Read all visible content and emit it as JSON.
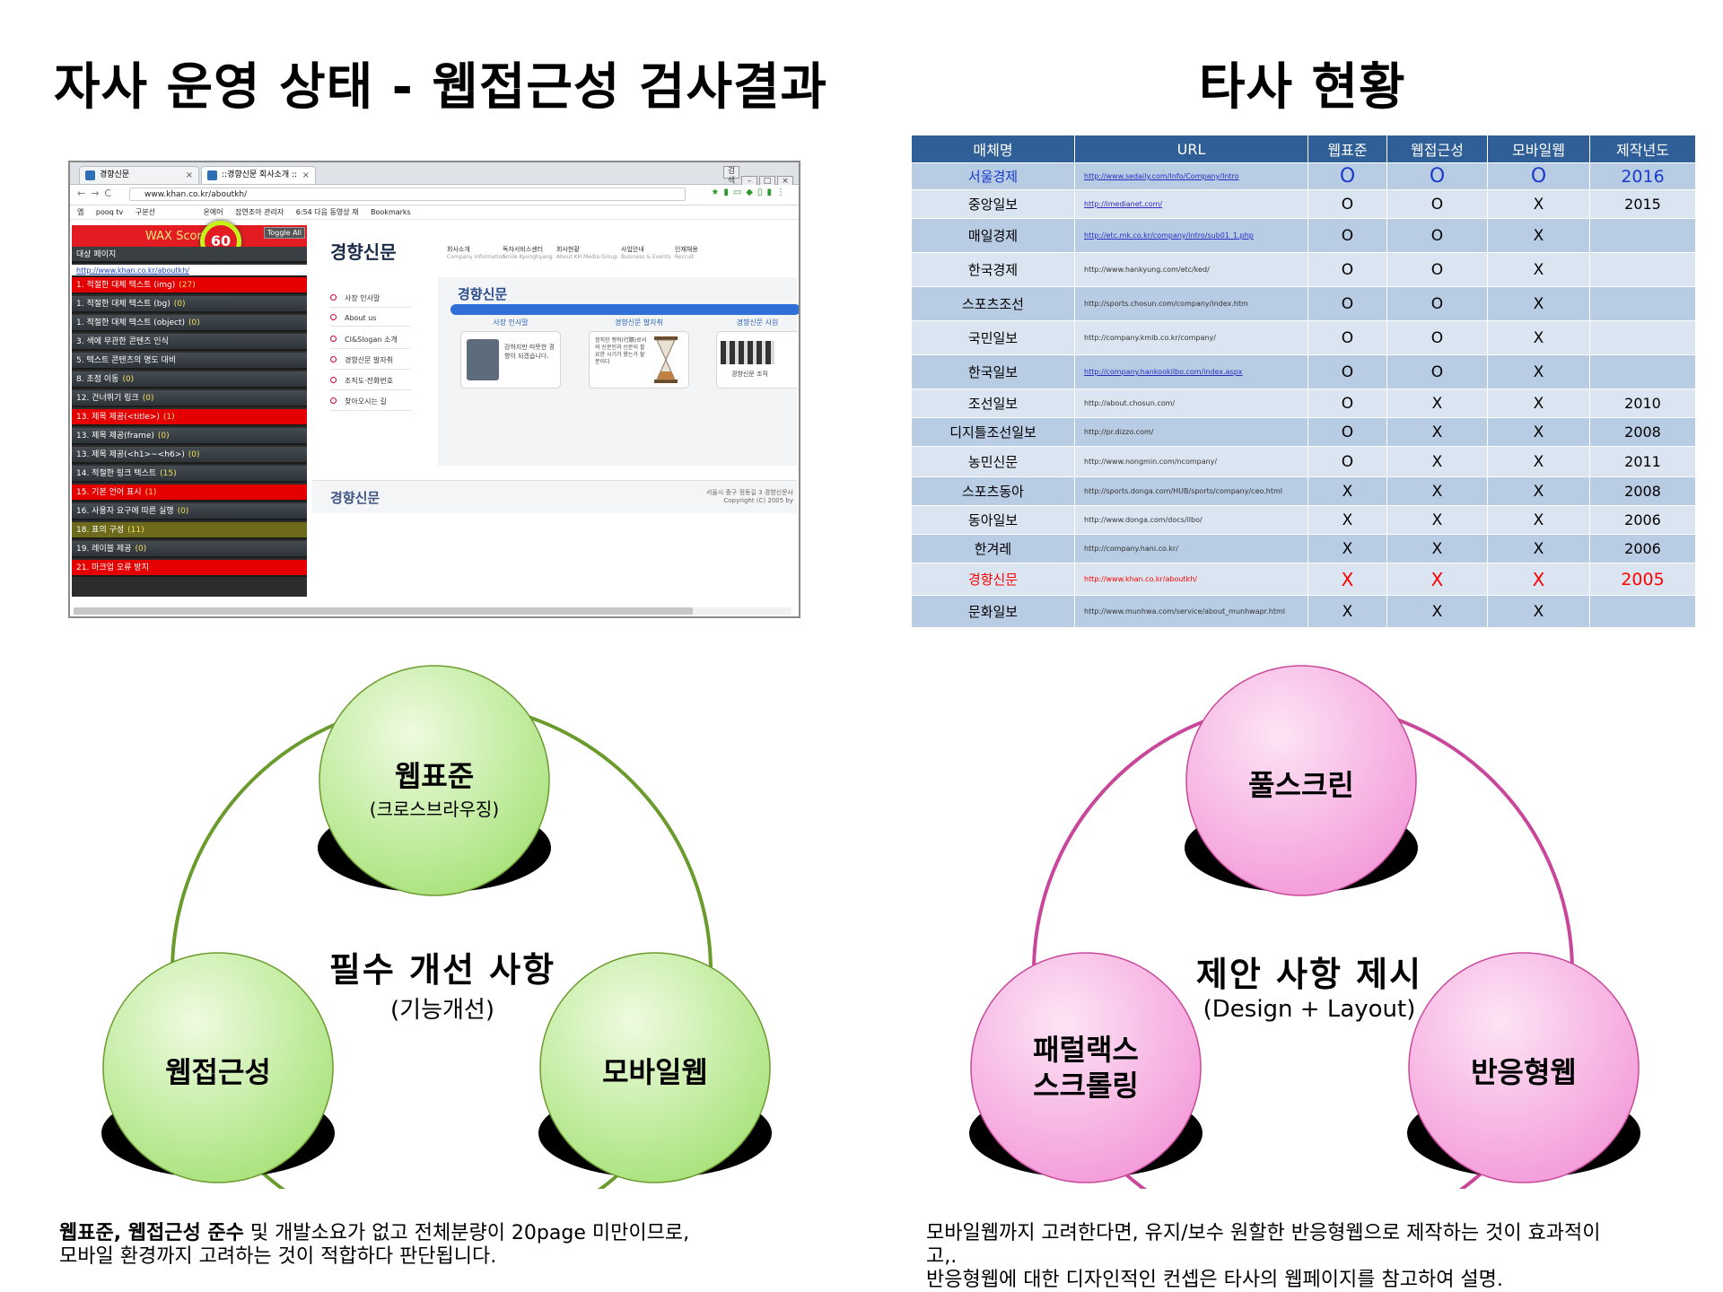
{
  "left_title": "자사 운영 상태 - 웹접근성 검사결과",
  "right_title": "타사 현황",
  "browser": {
    "tabs": [
      "경향신문",
      "::경향신문 회사소개 ::"
    ],
    "window_buttons": [
      "검색",
      "–",
      "□",
      "×"
    ],
    "url": "www.khan.co.kr/aboutkh/",
    "bookmarks": [
      "앱",
      "pooq tv",
      "구분선",
      "온에어",
      "잡연조아 관리자",
      "6:54 다음 동영상 재",
      "Bookmarks"
    ],
    "wax": {
      "title": "WAX Score",
      "score": "60",
      "toggle": "Toggle All",
      "target_label": "대상 페이지",
      "target_url": "http://www.khan.co.kr/aboutkh/",
      "items": [
        {
          "text": "1. 적절한 대체 텍스트 (img)",
          "count": "(27)",
          "status": "red"
        },
        {
          "text": "1. 적절한 대체 텍스트 (bg)",
          "count": "(0)",
          "status": "ok"
        },
        {
          "text": "1. 적절한 대체 텍스트 (object)",
          "count": "(0)",
          "status": "ok"
        },
        {
          "text": "3. 색에 무관한 콘텐츠 인식",
          "count": "",
          "status": "ok"
        },
        {
          "text": "5. 텍스트 콘텐츠의 명도 대비",
          "count": "",
          "status": "ok"
        },
        {
          "text": "8. 초점 이동",
          "count": "(0)",
          "status": "ok"
        },
        {
          "text": "12. 건너뛰기 링크",
          "count": "(0)",
          "status": "ok"
        },
        {
          "text": "13. 제목 제공(<title>)",
          "count": "(1)",
          "status": "red"
        },
        {
          "text": "13. 제목 제공(frame)",
          "count": "(0)",
          "status": "ok"
        },
        {
          "text": "13. 제목 제공(<h1>~<h6>)",
          "count": "(0)",
          "status": "ok"
        },
        {
          "text": "14. 적절한 링크 텍스트",
          "count": "(15)",
          "status": "ok"
        },
        {
          "text": "15. 기본 언어 표시",
          "count": "(1)",
          "status": "red"
        },
        {
          "text": "16. 사용자 요구에 따른 실행",
          "count": "(0)",
          "status": "ok"
        },
        {
          "text": "18. 표의 구성",
          "count": "(11)",
          "status": "olive"
        },
        {
          "text": "19. 레이블 제공",
          "count": "(0)",
          "status": "ok"
        },
        {
          "text": "21. 마크업 오류 방지",
          "count": "",
          "status": "red"
        }
      ]
    },
    "site": {
      "logo": "경향신문",
      "gnb": [
        {
          "ko": "회사소개",
          "en": "Company Information"
        },
        {
          "ko": "독자서비스센터",
          "en": "Smile Kyunghyang"
        },
        {
          "ko": "회사현황",
          "en": "About KH Media Group"
        },
        {
          "ko": "사업안내",
          "en": "Business & Events"
        },
        {
          "ko": "인재채용",
          "en": "Recruit"
        }
      ],
      "lnb": [
        "사장 인사말",
        "About us",
        "CI&Slogan 소개",
        "경향신문 발자취",
        "조직도·전화번호",
        "찾아오시는 길"
      ],
      "section_title": "경향신문",
      "panels": [
        {
          "head": "사장 인사말",
          "body": "강하지만 따뜻한 경향이 되겠습니다."
        },
        {
          "head": "경향신문 발자취",
          "body": "정직한 행적(行蹟)로서의 신문인과 신문이 필요한 시기가 왔는가 할 분이다"
        },
        {
          "head": "경향신문 사원",
          "body": "경향신문 조직"
        }
      ],
      "footer_logo": "경향신문",
      "footer_addr": "서울시 중구 정동길 3 경향신문사",
      "footer_copy": "Copyright (C) 2005 by"
    }
  },
  "table": {
    "headers": [
      "매체명",
      "URL",
      "웹표준",
      "웹접근성",
      "모바일웹",
      "제작년도"
    ],
    "rows": [
      {
        "name": "서울경제",
        "url": "http://www.sedaily.com/Info/Company/Intro",
        "std": "O",
        "acc": "O",
        "mob": "O",
        "year": "2016",
        "hl": "blue",
        "link": true
      },
      {
        "name": "중앙일보",
        "url": "http://imedianet.com/",
        "std": "O",
        "acc": "O",
        "mob": "X",
        "year": "2015",
        "hl": "",
        "link": true
      },
      {
        "name": "매일경제",
        "url": "http://etc.mk.co.kr/company/intro/sub01_1.php",
        "std": "O",
        "acc": "O",
        "mob": "X",
        "year": "",
        "hl": "",
        "link": true
      },
      {
        "name": "한국경제",
        "url": "http://www.hankyung.com/etc/ked/",
        "std": "O",
        "acc": "O",
        "mob": "X",
        "year": "",
        "hl": "",
        "link": false
      },
      {
        "name": "스포츠조선",
        "url": "http://sports.chosun.com/company/index.htm",
        "std": "O",
        "acc": "O",
        "mob": "X",
        "year": "",
        "hl": "",
        "link": false
      },
      {
        "name": "국민일보",
        "url": "http://company.kmib.co.kr/company/",
        "std": "O",
        "acc": "O",
        "mob": "X",
        "year": "",
        "hl": "",
        "link": false
      },
      {
        "name": "한국일보",
        "url": "http://company.hankookilbo.com/index.aspx",
        "std": "O",
        "acc": "O",
        "mob": "X",
        "year": "",
        "hl": "",
        "link": true
      },
      {
        "name": "조선일보",
        "url": "http://about.chosun.com/",
        "std": "O",
        "acc": "X",
        "mob": "X",
        "year": "2010",
        "hl": "",
        "link": false
      },
      {
        "name": "디지틀조선일보",
        "url": "http://pr.dizzo.com/",
        "std": "O",
        "acc": "X",
        "mob": "X",
        "year": "2008",
        "hl": "",
        "link": false
      },
      {
        "name": "농민신문",
        "url": "http://www.nongmin.com/ncompany/",
        "std": "O",
        "acc": "X",
        "mob": "X",
        "year": "2011",
        "hl": "",
        "link": false
      },
      {
        "name": "스포츠동아",
        "url": "http://sports.donga.com/HUB/sports/company/ceo.html",
        "std": "X",
        "acc": "X",
        "mob": "X",
        "year": "2008",
        "hl": "",
        "link": false
      },
      {
        "name": "동아일보",
        "url": "http://www.donga.com/docs/ilbo/",
        "std": "X",
        "acc": "X",
        "mob": "X",
        "year": "2006",
        "hl": "",
        "link": false
      },
      {
        "name": "한겨레",
        "url": "http://company.hani.co.kr/",
        "std": "X",
        "acc": "X",
        "mob": "X",
        "year": "2006",
        "hl": "",
        "link": false
      },
      {
        "name": "경향신문",
        "url": "http://www.khan.co.kr/aboutkh/",
        "std": "X",
        "acc": "X",
        "mob": "X",
        "year": "2005",
        "hl": "red",
        "link": false
      },
      {
        "name": "문화일보",
        "url": "http://www.munhwa.com/service/about_munhwapr.html",
        "std": "X",
        "acc": "X",
        "mob": "X",
        "year": "",
        "hl": "",
        "link": false
      }
    ]
  },
  "left_diagram": {
    "top": "웹표준",
    "top_sub": "(크로스브라우징)",
    "left": "웹접근성",
    "right": "모바일웹",
    "center": "필수 개선 사항",
    "center_sub": "(기능개선)",
    "ring_color": "#6b9a2d",
    "sphere_light": "#eefbe0",
    "sphere_dark": "#a8e27a"
  },
  "right_diagram": {
    "top": "풀스크린",
    "left_line1": "패럴랙스",
    "left_line2": "스크롤링",
    "right": "반응형웹",
    "center": "제안 사항 제시",
    "center_sub": "(Design + Layout)",
    "ring_color": "#c8479a",
    "sphere_light": "#fde4f5",
    "sphere_dark": "#f39ad8"
  },
  "left_para": {
    "bold1": "웹표준, 웹접근성 준수",
    "rest1": " 및 개발소요가 없고 전체분량이 20page 미만이므로,",
    "line2": "모바일 환경까지 고려하는 것이 적합하다 판단됩니다."
  },
  "right_para": {
    "line1": "모바일웹까지 고려한다면, 유지/보수 원할한 반응형웹으로 제작하는 것이 효과적이",
    "line2": "고,.",
    "line3": "반응형웹에 대한 디자인적인 컨셉은 타사의 웹페이지를 참고하여 설명."
  }
}
